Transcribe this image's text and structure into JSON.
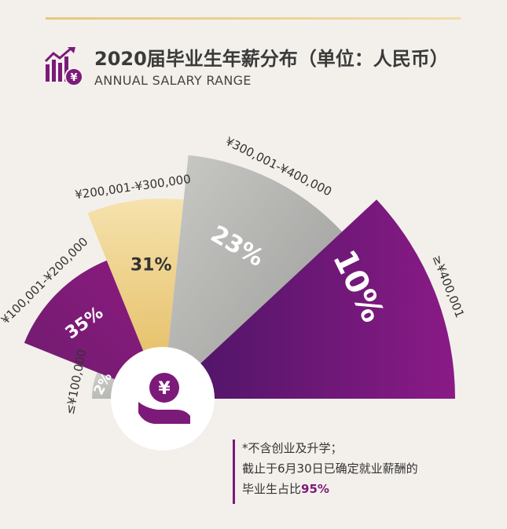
{
  "header": {
    "title": "2020届毕业生年薪分布（单位：人民币）",
    "subtitle": "ANNUAL SALARY RANGE"
  },
  "note": {
    "line1": "*不含创业及升学；",
    "line2": "截止于6月30日已确定就业薪酬的",
    "line3_prefix": "毕业生占比",
    "line3_highlight": "95%"
  },
  "center_icon": "yen-coin-in-hand-icon",
  "title_icon": "bar-chart-yen-icon",
  "colors": {
    "purple": "#7c1a7a",
    "gold": "#e8c476",
    "gray": "#b9b9b7",
    "accent_rule": "#e6c77e"
  },
  "chart_data": {
    "type": "pie",
    "categories": [
      "≤¥100,000",
      "¥100,001-¥200,000",
      "¥200,001-¥300,000",
      "¥300,001-¥400,000",
      "≥¥400,001"
    ],
    "values": [
      2,
      35,
      31,
      23,
      10
    ],
    "value_labels": [
      "2%",
      "35%",
      "31%",
      "23%",
      "10%"
    ]
  }
}
